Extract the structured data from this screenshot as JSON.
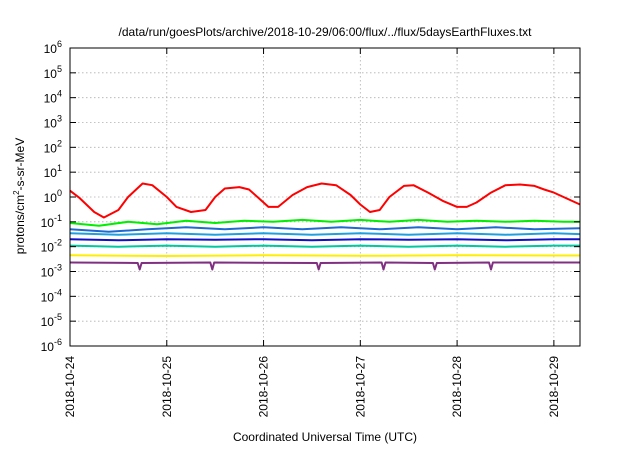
{
  "chart_data": {
    "type": "line",
    "title": "/data/run/goesPlots/archive/2018-10-29/06:00/flux/../flux/5daysEarthFluxes.txt",
    "xlabel": "Coordinated Universal Time (UTC)",
    "ylabel_parts": [
      "protons/cm",
      "2",
      "-s-sr-MeV"
    ],
    "yscale": "log",
    "ylim_exp": [
      -6,
      6
    ],
    "y_ticks": [
      {
        "base": "10",
        "exp": "-6"
      },
      {
        "base": "10",
        "exp": "-5"
      },
      {
        "base": "10",
        "exp": "-4"
      },
      {
        "base": "10",
        "exp": "-3"
      },
      {
        "base": "10",
        "exp": "-2"
      },
      {
        "base": "10",
        "exp": "-1"
      },
      {
        "base": "10",
        "exp": "0"
      },
      {
        "base": "10",
        "exp": "1"
      },
      {
        "base": "10",
        "exp": "2"
      },
      {
        "base": "10",
        "exp": "3"
      },
      {
        "base": "10",
        "exp": "4"
      },
      {
        "base": "10",
        "exp": "5"
      },
      {
        "base": "10",
        "exp": "6"
      }
    ],
    "x_ticks": [
      "2018-10-24",
      "2018-10-25",
      "2018-10-26",
      "2018-10-27",
      "2018-10-28",
      "2018-10-29"
    ],
    "x_range_days": [
      0,
      5.27
    ],
    "grid": true,
    "legend": "none",
    "series": [
      {
        "color": "#ff0000",
        "values": [
          [
            0.0,
            1.8
          ],
          [
            0.1,
            0.9
          ],
          [
            0.25,
            0.25
          ],
          [
            0.35,
            0.15
          ],
          [
            0.5,
            0.3
          ],
          [
            0.6,
            1.0
          ],
          [
            0.75,
            3.5
          ],
          [
            0.85,
            3.0
          ],
          [
            1.0,
            1.0
          ],
          [
            1.1,
            0.4
          ],
          [
            1.25,
            0.25
          ],
          [
            1.4,
            0.3
          ],
          [
            1.5,
            1.0
          ],
          [
            1.6,
            2.2
          ],
          [
            1.75,
            2.5
          ],
          [
            1.85,
            2.0
          ],
          [
            1.95,
            0.9
          ],
          [
            2.05,
            0.4
          ],
          [
            2.15,
            0.4
          ],
          [
            2.3,
            1.2
          ],
          [
            2.45,
            2.5
          ],
          [
            2.6,
            3.5
          ],
          [
            2.75,
            3.0
          ],
          [
            2.9,
            1.2
          ],
          [
            3.0,
            0.5
          ],
          [
            3.1,
            0.25
          ],
          [
            3.2,
            0.3
          ],
          [
            3.3,
            1.0
          ],
          [
            3.45,
            2.8
          ],
          [
            3.55,
            3.0
          ],
          [
            3.7,
            1.5
          ],
          [
            3.85,
            0.7
          ],
          [
            4.0,
            0.4
          ],
          [
            4.1,
            0.4
          ],
          [
            4.2,
            0.6
          ],
          [
            4.35,
            1.5
          ],
          [
            4.5,
            3.0
          ],
          [
            4.65,
            3.2
          ],
          [
            4.8,
            2.8
          ],
          [
            4.9,
            2.0
          ],
          [
            5.0,
            1.5
          ],
          [
            5.1,
            1.0
          ],
          [
            5.27,
            0.5
          ]
        ]
      },
      {
        "color": "#00ee00",
        "values": [
          [
            0.0,
            0.09
          ],
          [
            0.3,
            0.07
          ],
          [
            0.6,
            0.1
          ],
          [
            0.9,
            0.08
          ],
          [
            1.2,
            0.11
          ],
          [
            1.5,
            0.09
          ],
          [
            1.8,
            0.11
          ],
          [
            2.1,
            0.1
          ],
          [
            2.4,
            0.12
          ],
          [
            2.7,
            0.1
          ],
          [
            3.0,
            0.12
          ],
          [
            3.3,
            0.1
          ],
          [
            3.6,
            0.12
          ],
          [
            3.9,
            0.1
          ],
          [
            4.2,
            0.11
          ],
          [
            4.5,
            0.1
          ],
          [
            4.8,
            0.11
          ],
          [
            5.1,
            0.1
          ],
          [
            5.27,
            0.1
          ]
        ]
      },
      {
        "color": "#1e6ad0",
        "values": [
          [
            0.0,
            0.05
          ],
          [
            0.4,
            0.04
          ],
          [
            0.8,
            0.05
          ],
          [
            1.2,
            0.06
          ],
          [
            1.6,
            0.05
          ],
          [
            2.0,
            0.06
          ],
          [
            2.4,
            0.05
          ],
          [
            2.8,
            0.06
          ],
          [
            3.2,
            0.05
          ],
          [
            3.6,
            0.06
          ],
          [
            4.0,
            0.05
          ],
          [
            4.4,
            0.06
          ],
          [
            4.8,
            0.05
          ],
          [
            5.27,
            0.055
          ]
        ]
      },
      {
        "color": "#1ea0e0",
        "values": [
          [
            0.0,
            0.035
          ],
          [
            0.5,
            0.03
          ],
          [
            1.0,
            0.035
          ],
          [
            1.5,
            0.03
          ],
          [
            2.0,
            0.035
          ],
          [
            2.5,
            0.03
          ],
          [
            3.0,
            0.035
          ],
          [
            3.5,
            0.03
          ],
          [
            4.0,
            0.035
          ],
          [
            4.5,
            0.03
          ],
          [
            5.0,
            0.035
          ],
          [
            5.27,
            0.032
          ]
        ]
      },
      {
        "color": "#1010c8",
        "values": [
          [
            0.0,
            0.02
          ],
          [
            0.5,
            0.018
          ],
          [
            1.0,
            0.02
          ],
          [
            1.5,
            0.019
          ],
          [
            2.0,
            0.02
          ],
          [
            2.5,
            0.018
          ],
          [
            3.0,
            0.02
          ],
          [
            3.5,
            0.019
          ],
          [
            4.0,
            0.02
          ],
          [
            4.5,
            0.018
          ],
          [
            5.0,
            0.02
          ],
          [
            5.27,
            0.02
          ]
        ]
      },
      {
        "color": "#00c8a0",
        "values": [
          [
            0.0,
            0.011
          ],
          [
            0.5,
            0.01
          ],
          [
            1.0,
            0.011
          ],
          [
            1.5,
            0.01
          ],
          [
            2.0,
            0.011
          ],
          [
            2.5,
            0.01
          ],
          [
            3.0,
            0.011
          ],
          [
            3.5,
            0.01
          ],
          [
            4.0,
            0.011
          ],
          [
            4.5,
            0.01
          ],
          [
            5.0,
            0.011
          ],
          [
            5.27,
            0.011
          ]
        ]
      },
      {
        "color": "#ffee00",
        "values": [
          [
            0.0,
            0.0045
          ],
          [
            1.0,
            0.0042
          ],
          [
            2.0,
            0.0045
          ],
          [
            3.0,
            0.0043
          ],
          [
            4.0,
            0.0045
          ],
          [
            5.0,
            0.0044
          ],
          [
            5.27,
            0.0044
          ]
        ]
      },
      {
        "color": "#803080",
        "values": [
          [
            0.0,
            0.0023
          ],
          [
            0.7,
            0.0022
          ],
          [
            0.72,
            0.0012
          ],
          [
            0.74,
            0.0022
          ],
          [
            1.45,
            0.0023
          ],
          [
            1.47,
            0.0012
          ],
          [
            1.49,
            0.0023
          ],
          [
            2.55,
            0.0022
          ],
          [
            2.57,
            0.0012
          ],
          [
            2.59,
            0.0022
          ],
          [
            3.22,
            0.0023
          ],
          [
            3.24,
            0.0012
          ],
          [
            3.26,
            0.0023
          ],
          [
            3.75,
            0.0022
          ],
          [
            3.77,
            0.0012
          ],
          [
            3.79,
            0.0022
          ],
          [
            4.33,
            0.0023
          ],
          [
            4.35,
            0.0012
          ],
          [
            4.37,
            0.0023
          ],
          [
            5.27,
            0.0023
          ]
        ]
      }
    ]
  }
}
